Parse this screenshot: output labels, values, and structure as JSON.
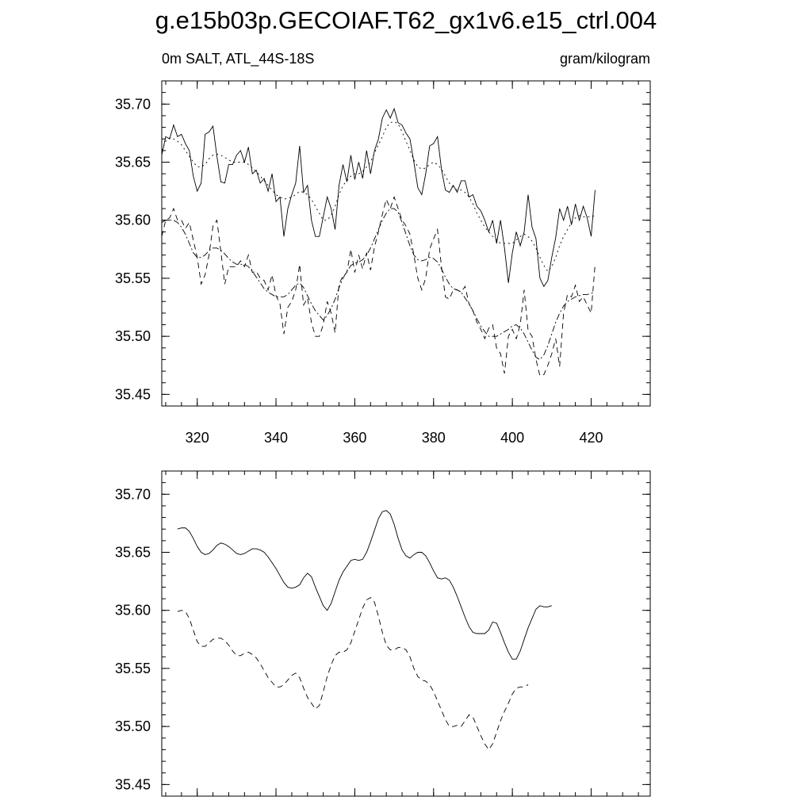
{
  "page": {
    "title": "g.e15b03p.GECOIAF.T62_gx1v6.e15_ctrl.004",
    "subtitle_left": "0m SALT, ATL_44S-18S",
    "subtitle_right": "gram/kilogram"
  },
  "chart_data": [
    {
      "type": "line",
      "title": "",
      "xlabel": "",
      "ylabel": "",
      "xlim": [
        311,
        435
      ],
      "ylim": [
        35.44,
        35.72
      ],
      "x_ticks": [
        320,
        340,
        360,
        380,
        400,
        420
      ],
      "y_ticks": [
        35.45,
        35.5,
        35.55,
        35.6,
        35.65,
        35.7
      ],
      "y_tick_labels": [
        "35.45",
        "35.50",
        "35.55",
        "35.60",
        "35.65",
        "35.70"
      ],
      "x_tick_labels": [
        "320",
        "340",
        "360",
        "380",
        "400",
        "420"
      ],
      "series": [
        {
          "style": "solid",
          "x_start": 311,
          "x_step": 1,
          "values": [
            35.656,
            35.672,
            35.67,
            35.682,
            35.672,
            35.674,
            35.666,
            35.66,
            35.638,
            35.625,
            35.632,
            35.674,
            35.676,
            35.681,
            35.655,
            35.633,
            35.632,
            35.648,
            35.648,
            35.656,
            35.66,
            35.65,
            35.663,
            35.64,
            35.643,
            35.632,
            35.636,
            35.625,
            35.64,
            35.616,
            35.62,
            35.586,
            35.61,
            35.622,
            35.632,
            35.664,
            35.624,
            35.63,
            35.6,
            35.586,
            35.586,
            35.603,
            35.62,
            35.61,
            35.592,
            35.63,
            35.648,
            35.633,
            35.656,
            35.635,
            35.65,
            35.636,
            35.66,
            35.64,
            35.66,
            35.67,
            35.688,
            35.695,
            35.688,
            35.696,
            35.684,
            35.682,
            35.675,
            35.67,
            35.65,
            35.628,
            35.622,
            35.64,
            35.664,
            35.666,
            35.672,
            35.644,
            35.626,
            35.624,
            35.63,
            35.624,
            35.634,
            35.634,
            35.62,
            35.622,
            35.612,
            35.608,
            35.6,
            35.59,
            35.6,
            35.58,
            35.6,
            35.576,
            35.546,
            35.572,
            35.59,
            35.578,
            35.59,
            35.622,
            35.594,
            35.584,
            35.55,
            35.543,
            35.548,
            35.568,
            35.585,
            35.61,
            35.6,
            35.612,
            35.596,
            35.614,
            35.6,
            35.612,
            35.602,
            35.586,
            35.626
          ]
        },
        {
          "style": "dotted",
          "x_start": 311,
          "x_step": 1,
          "values": [
            35.66,
            35.668,
            35.671,
            35.67,
            35.668,
            35.665,
            35.66,
            35.655,
            35.65,
            35.646,
            35.646,
            35.648,
            35.653,
            35.656,
            35.657,
            35.656,
            35.654,
            35.652,
            35.65,
            35.65,
            35.65,
            35.65,
            35.648,
            35.645,
            35.642,
            35.638,
            35.634,
            35.63,
            35.626,
            35.622,
            35.62,
            35.618,
            35.619,
            35.62,
            35.622,
            35.625,
            35.624,
            35.622,
            35.618,
            35.612,
            35.606,
            35.6,
            35.6,
            35.604,
            35.612,
            35.622,
            35.63,
            35.634,
            35.638,
            35.64,
            35.64,
            35.642,
            35.646,
            35.65,
            35.658,
            35.665,
            35.672,
            35.68,
            35.684,
            35.685,
            35.683,
            35.676,
            35.668,
            35.66,
            35.652,
            35.646,
            35.644,
            35.645,
            35.648,
            35.65,
            35.648,
            35.644,
            35.638,
            35.632,
            35.628,
            35.626,
            35.626,
            35.624,
            35.62,
            35.614,
            35.606,
            35.6,
            35.594,
            35.59,
            35.586,
            35.583,
            35.58,
            35.58,
            35.58,
            35.58,
            35.583,
            35.586,
            35.588,
            35.586,
            35.582,
            35.576,
            35.568,
            35.561,
            35.556,
            35.56,
            35.568,
            35.578,
            35.586,
            35.592,
            35.598,
            35.602,
            35.604,
            35.603,
            35.603,
            35.603,
            35.604
          ]
        },
        {
          "style": "dashed",
          "x_start": 311,
          "x_step": 1,
          "values": [
            35.586,
            35.6,
            35.602,
            35.61,
            35.6,
            35.6,
            35.593,
            35.598,
            35.583,
            35.568,
            35.545,
            35.553,
            35.57,
            35.595,
            35.6,
            35.573,
            35.545,
            35.56,
            35.56,
            35.56,
            35.565,
            35.56,
            35.57,
            35.555,
            35.556,
            35.55,
            35.548,
            35.54,
            35.553,
            35.535,
            35.528,
            35.502,
            35.525,
            35.53,
            35.54,
            35.562,
            35.527,
            35.533,
            35.512,
            35.5,
            35.5,
            35.51,
            35.53,
            35.52,
            35.503,
            35.545,
            35.552,
            35.555,
            35.575,
            35.555,
            35.57,
            35.558,
            35.572,
            35.557,
            35.577,
            35.59,
            35.605,
            35.618,
            35.61,
            35.62,
            35.61,
            35.6,
            35.595,
            35.588,
            35.57,
            35.55,
            35.54,
            35.55,
            35.575,
            35.584,
            35.592,
            35.56,
            35.534,
            35.532,
            35.54,
            35.54,
            35.538,
            35.543,
            35.528,
            35.522,
            35.512,
            35.506,
            35.498,
            35.507,
            35.51,
            35.49,
            35.485,
            35.468,
            35.5,
            35.506,
            35.498,
            35.51,
            35.54,
            35.505,
            35.5,
            35.48,
            35.466,
            35.467,
            35.475,
            35.485,
            35.498,
            35.474,
            35.52,
            35.536,
            35.534,
            35.544,
            35.53,
            35.534,
            35.527,
            35.52,
            35.562
          ]
        },
        {
          "style": "dash-dot",
          "x_start": 311,
          "x_step": 1,
          "values": [
            35.598,
            35.6,
            35.6,
            35.6,
            35.598,
            35.594,
            35.588,
            35.58,
            35.572,
            35.568,
            35.568,
            35.57,
            35.574,
            35.576,
            35.576,
            35.574,
            35.571,
            35.567,
            35.564,
            35.562,
            35.562,
            35.562,
            35.56,
            35.556,
            35.551,
            35.546,
            35.541,
            35.538,
            35.536,
            35.534,
            35.534,
            35.534,
            35.536,
            35.54,
            35.544,
            35.546,
            35.542,
            35.535,
            35.528,
            35.522,
            35.518,
            35.514,
            35.518,
            35.524,
            35.532,
            35.542,
            35.55,
            35.556,
            35.561,
            35.563,
            35.564,
            35.566,
            35.57,
            35.576,
            35.584,
            35.592,
            35.6,
            35.606,
            35.61,
            35.61,
            35.607,
            35.598,
            35.588,
            35.578,
            35.57,
            35.566,
            35.565,
            35.566,
            35.568,
            35.567,
            35.564,
            35.558,
            35.551,
            35.545,
            35.541,
            35.54,
            35.538,
            35.533,
            35.528,
            35.522,
            35.515,
            35.509,
            35.504,
            35.5,
            35.5,
            35.5,
            35.502,
            35.504,
            35.506,
            35.509,
            35.51,
            35.507,
            35.502,
            35.495,
            35.488,
            35.482,
            35.48,
            35.484,
            35.492,
            35.502,
            35.512,
            35.52,
            35.526,
            35.53,
            35.532,
            35.534,
            35.535,
            35.536,
            35.536,
            35.537,
            35.538
          ]
        }
      ]
    },
    {
      "type": "line",
      "title": "",
      "xlabel": "",
      "ylabel": "",
      "xlim": [
        311,
        435
      ],
      "ylim": [
        35.44,
        35.72
      ],
      "x_ticks": [
        320,
        340,
        360,
        380,
        400,
        420
      ],
      "y_ticks": [
        35.45,
        35.5,
        35.55,
        35.6,
        35.65,
        35.7
      ],
      "y_tick_labels": [
        "35.45",
        "35.50",
        "35.55",
        "35.60",
        "35.65",
        "35.70"
      ],
      "x_tick_labels": [],
      "series": [
        {
          "style": "solid",
          "x_start": 315,
          "x_step": 1,
          "values": [
            35.67,
            35.671,
            35.671,
            35.668,
            35.662,
            35.655,
            35.65,
            35.648,
            35.649,
            35.652,
            35.656,
            35.658,
            35.657,
            35.655,
            35.652,
            35.649,
            35.648,
            35.649,
            35.651,
            35.653,
            35.653,
            35.652,
            35.65,
            35.646,
            35.641,
            35.636,
            35.63,
            35.624,
            35.62,
            35.619,
            35.62,
            35.622,
            35.628,
            35.632,
            35.629,
            35.62,
            35.612,
            35.604,
            35.6,
            35.606,
            35.616,
            35.626,
            35.633,
            35.638,
            35.643,
            35.644,
            35.643,
            35.644,
            35.65,
            35.659,
            35.669,
            35.679,
            35.685,
            35.686,
            35.683,
            35.674,
            35.662,
            35.652,
            35.647,
            35.645,
            35.648,
            35.65,
            35.65,
            35.647,
            35.641,
            35.634,
            35.628,
            35.627,
            35.628,
            35.626,
            35.62,
            35.612,
            35.603,
            35.594,
            35.586,
            35.581,
            35.58,
            35.58,
            35.58,
            35.583,
            35.59,
            35.589,
            35.581,
            35.572,
            35.564,
            35.558,
            35.558,
            35.565,
            35.575,
            35.585,
            35.593,
            35.601,
            35.604,
            35.603,
            35.603,
            35.604
          ]
        },
        {
          "style": "dashed",
          "x_start": 315,
          "x_step": 1,
          "values": [
            35.599,
            35.6,
            35.599,
            35.593,
            35.583,
            35.573,
            35.569,
            35.569,
            35.572,
            35.575,
            35.576,
            35.576,
            35.574,
            35.57,
            35.565,
            35.561,
            35.561,
            35.563,
            35.564,
            35.562,
            35.559,
            35.554,
            35.548,
            35.542,
            35.538,
            35.534,
            35.534,
            35.536,
            35.54,
            35.544,
            35.546,
            35.542,
            35.533,
            35.525,
            35.52,
            35.515,
            35.518,
            35.53,
            35.543,
            35.553,
            35.561,
            35.564,
            35.564,
            35.566,
            35.572,
            35.582,
            35.592,
            35.602,
            35.609,
            35.611,
            35.607,
            35.595,
            35.581,
            35.57,
            35.566,
            35.566,
            35.568,
            35.568,
            35.566,
            35.56,
            35.55,
            35.543,
            35.54,
            35.539,
            35.536,
            35.53,
            35.522,
            35.514,
            35.506,
            35.5,
            35.5,
            35.501,
            35.5,
            35.505,
            35.51,
            35.508,
            35.5,
            35.492,
            35.485,
            35.48,
            35.485,
            35.495,
            35.505,
            35.513,
            35.52,
            35.528,
            35.533,
            35.534,
            35.534,
            35.536
          ]
        }
      ]
    }
  ]
}
